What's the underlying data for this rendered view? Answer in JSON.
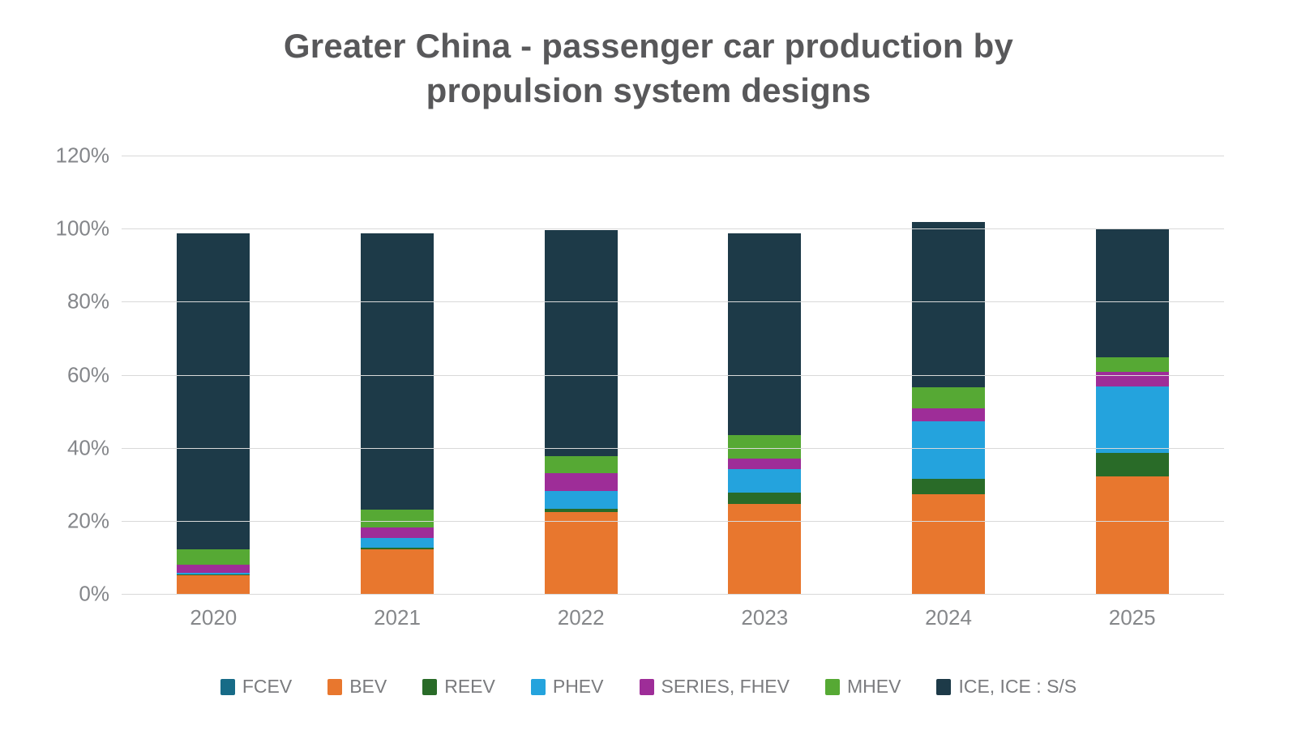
{
  "title": {
    "text": "Greater China - passenger car production by propulsion system designs",
    "line1": "Greater China - passenger car production by",
    "line2": "propulsion system designs",
    "color": "#58585a"
  },
  "axes": {
    "y_ticks": [
      "120%",
      "100%",
      "80%",
      "60%",
      "40%",
      "20%",
      "0%"
    ],
    "x_ticks": [
      "2020",
      "2021",
      "2022",
      "2023",
      "2024",
      "2025"
    ],
    "tick_color": "#85878a",
    "grid_color": "#d9d9d9"
  },
  "legend": {
    "position": "bottom",
    "text_color": "#7a7b7e",
    "items": [
      {
        "label": "FCEV",
        "color": "#176b87"
      },
      {
        "label": "BEV",
        "color": "#e8772e"
      },
      {
        "label": "REEV",
        "color": "#296b28"
      },
      {
        "label": "PHEV",
        "color": "#24a3dd"
      },
      {
        "label": "SERIES, FHEV",
        "color": "#9e2d98"
      },
      {
        "label": "MHEV",
        "color": "#56a934"
      },
      {
        "label": "ICE, ICE : S/S",
        "color": "#1d3a48"
      }
    ]
  },
  "chart_data": {
    "type": "bar",
    "stacked": true,
    "unit": "percent",
    "title": "Greater China - passenger car production by propulsion system designs",
    "categories": [
      "2020",
      "2021",
      "2022",
      "2023",
      "2024",
      "2025"
    ],
    "series": [
      {
        "name": "FCEV",
        "color": "#176b87",
        "values": [
          0,
          0,
          0,
          0,
          0.1,
          0.1
        ]
      },
      {
        "name": "BEV",
        "color": "#e8772e",
        "values": [
          5,
          12.3,
          22.5,
          24.7,
          27.1,
          32
        ]
      },
      {
        "name": "REEV",
        "color": "#296b28",
        "values": [
          0.3,
          0.4,
          0.9,
          3.1,
          4.4,
          6.5
        ]
      },
      {
        "name": "PHEV",
        "color": "#24a3dd",
        "values": [
          0.5,
          2.7,
          4.7,
          6.4,
          15.6,
          18.3
        ]
      },
      {
        "name": "SERIES, FHEV",
        "color": "#9e2d98",
        "values": [
          2.2,
          2.7,
          5,
          2.8,
          3.5,
          3.8
        ]
      },
      {
        "name": "MHEV",
        "color": "#56a934",
        "values": [
          4.3,
          4.9,
          4.7,
          6.4,
          5.9,
          4.1
        ]
      },
      {
        "name": "ICE, ICE : S/S",
        "color": "#1d3a48",
        "values": [
          86.5,
          75.8,
          61.8,
          55.4,
          45.2,
          35
        ]
      }
    ],
    "approx_totals": [
      98.8,
      98.8,
      99.6,
      98.8,
      101.8,
      99.8
    ],
    "ylim": [
      0,
      120
    ],
    "ytick_step": 20,
    "grid": true,
    "vertical_grid": false,
    "legend_position": "bottom"
  }
}
